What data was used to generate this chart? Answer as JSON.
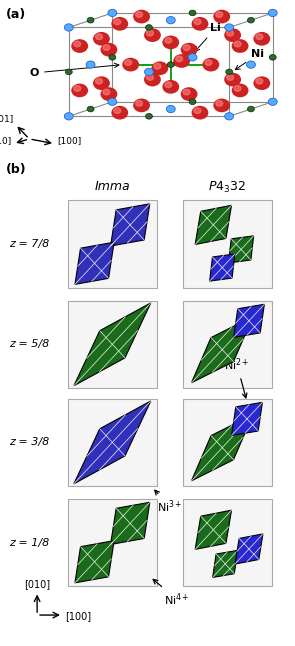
{
  "fig_width": 2.95,
  "fig_height": 6.46,
  "dpi": 100,
  "background": "#ffffff",
  "panel_a_label": "(a)",
  "panel_b_label": "(b)",
  "imma_title": "Imma",
  "p4332_title": "P4_332",
  "z_labels": [
    "z = 7/8",
    "z = 5/8",
    "z = 3/8",
    "z = 1/8"
  ],
  "green_color": "#1a6b1a",
  "blue_color": "#2828d0",
  "purple_color": "#3030bb",
  "box_bg": "#f5f5f5",
  "box_edge": "#aaaaaa",
  "axis_label_010": "[010]",
  "axis_label_100": "[100]",
  "axis_label_001": "[001]",
  "axis_label_010b": "[010]",
  "axis_label_100b": "[100]",
  "li_color": "#55aaff",
  "ni_color": "#336633",
  "o_color": "#cc2222",
  "bond_color": "#00aa00"
}
